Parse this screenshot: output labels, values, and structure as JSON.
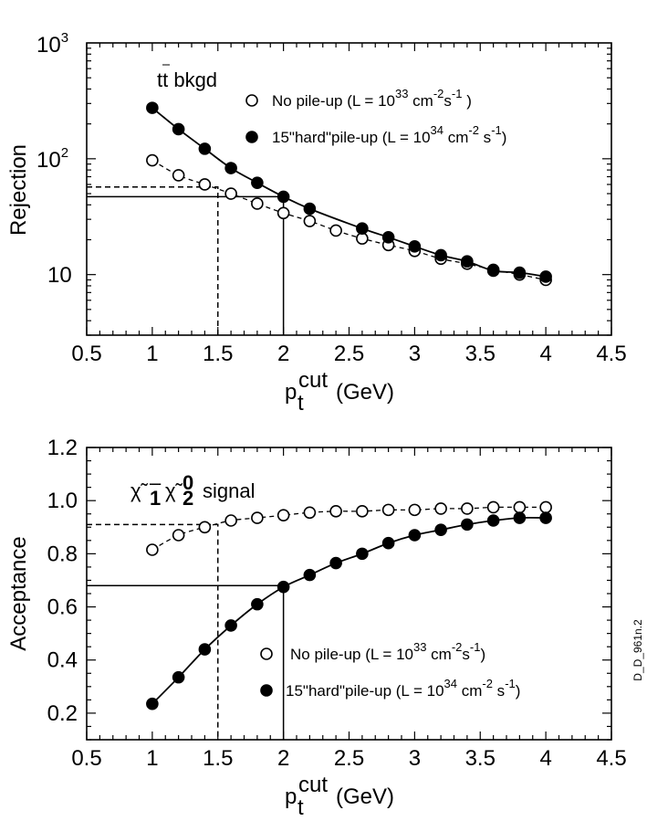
{
  "chart_data": [
    {
      "type": "scatter",
      "id": "top",
      "yscale": "log",
      "xlim": [
        0.5,
        4.5
      ],
      "ylim": [
        3,
        1000
      ],
      "xticks": [
        "0.5",
        "1",
        "1.5",
        "2",
        "2.5",
        "3",
        "3.5",
        "4",
        "4.5"
      ],
      "yticks": [
        {
          "value": 10,
          "label": "10",
          "exp": ""
        },
        {
          "value": 100,
          "label": "10",
          "exp": "2"
        },
        {
          "value": 1000,
          "label": "10",
          "exp": "3"
        }
      ],
      "xlabel": {
        "base": "p",
        "sup": "cut",
        "sub": "t",
        "unit": "(GeV)"
      },
      "ylabel": "Rejection",
      "title": "tt bkgd",
      "legend": [
        {
          "marker": "open",
          "text": "No pile-up (L = 10",
          "exp1": "33",
          "mid": " cm",
          "exp2": "-2",
          "mid2": "s",
          "exp3": "-1",
          "end": " )"
        },
        {
          "marker": "filled",
          "text": "15\"hard\"pile-up (L = 10",
          "exp1": "34",
          "mid": " cm",
          "exp2": "-2",
          "mid2": " s",
          "exp3": "-1",
          "end": ")"
        }
      ],
      "series": [
        {
          "name": "No pile-up",
          "marker": "open",
          "line": "dashed",
          "x": [
            1.0,
            1.2,
            1.4,
            1.6,
            1.8,
            2.0,
            2.2,
            2.4,
            2.6,
            2.8,
            3.0,
            3.2,
            3.4,
            3.6,
            3.8,
            4.0
          ],
          "y": [
            97,
            72,
            60,
            50,
            41,
            34,
            29,
            24,
            20.5,
            18,
            16,
            13.7,
            12.4,
            11,
            10,
            9
          ]
        },
        {
          "name": "15 hard pile-up",
          "marker": "filled",
          "line": "solid",
          "x": [
            1.0,
            1.2,
            1.4,
            1.6,
            1.8,
            2.0,
            2.2,
            2.6,
            2.8,
            3.0,
            3.2,
            3.4,
            3.6,
            3.8,
            4.0
          ],
          "y": [
            275,
            180,
            122,
            83,
            62,
            47,
            37,
            25,
            21,
            17.5,
            14.7,
            13,
            10.8,
            10.4,
            9.6
          ]
        }
      ],
      "guides": [
        {
          "style": "dashed",
          "x": 1.5,
          "y": 57
        },
        {
          "style": "solid",
          "x": 2.0,
          "y": 47
        }
      ]
    },
    {
      "type": "scatter",
      "id": "bottom",
      "yscale": "linear",
      "xlim": [
        0.5,
        4.5
      ],
      "ylim": [
        0.1,
        1.2
      ],
      "xticks": [
        "0.5",
        "1",
        "1.5",
        "2",
        "2.5",
        "3",
        "3.5",
        "4",
        "4.5"
      ],
      "yticks": [
        {
          "value": 0.2,
          "label": "0.2"
        },
        {
          "value": 0.4,
          "label": "0.4"
        },
        {
          "value": 0.6,
          "label": "0.6"
        },
        {
          "value": 0.8,
          "label": "0.8"
        },
        {
          "value": 1.0,
          "label": "1.0"
        },
        {
          "value": 1.2,
          "label": "1.2"
        }
      ],
      "xlabel": {
        "base": "p",
        "sup": "cut",
        "sub": "t",
        "unit": "(GeV)"
      },
      "ylabel": "Acceptance",
      "title": {
        "chi1": "χ̃",
        "sup1": "–",
        "sub1": "1",
        "chi2": "χ̃",
        "sup2": "0",
        "sub2": "2",
        "word": "signal"
      },
      "legend": [
        {
          "marker": "open",
          "text": "No pile-up (L = 10",
          "exp1": "33",
          "mid": " cm",
          "exp2": "-2",
          "mid2": "s",
          "exp3": "-1",
          "end": ")"
        },
        {
          "marker": "filled",
          "text": "15\"hard\"pile-up (L = 10",
          "exp1": "34",
          "mid": " cm",
          "exp2": "-2",
          "mid2": " s",
          "exp3": "-1",
          "end": ")"
        }
      ],
      "series": [
        {
          "name": "No pile-up",
          "marker": "open",
          "line": "dashed",
          "x": [
            1.0,
            1.2,
            1.4,
            1.6,
            1.8,
            2.0,
            2.2,
            2.4,
            2.6,
            2.8,
            3.0,
            3.2,
            3.4,
            3.6,
            3.8,
            4.0
          ],
          "y": [
            0.815,
            0.87,
            0.9,
            0.925,
            0.935,
            0.945,
            0.955,
            0.96,
            0.96,
            0.965,
            0.965,
            0.97,
            0.97,
            0.975,
            0.975,
            0.975
          ]
        },
        {
          "name": "15 hard pile-up",
          "marker": "filled",
          "line": "solid",
          "x": [
            1.0,
            1.2,
            1.4,
            1.6,
            1.8,
            2.0,
            2.2,
            2.4,
            2.6,
            2.8,
            3.0,
            3.2,
            3.4,
            3.6,
            3.8,
            4.0
          ],
          "y": [
            0.235,
            0.335,
            0.44,
            0.53,
            0.61,
            0.675,
            0.72,
            0.765,
            0.8,
            0.84,
            0.87,
            0.89,
            0.91,
            0.925,
            0.935,
            0.935
          ]
        }
      ],
      "guides": [
        {
          "style": "dashed",
          "x": 1.5,
          "y": 0.91
        },
        {
          "style": "solid",
          "x": 2.0,
          "y": 0.68
        }
      ]
    }
  ],
  "side_label": "D_D_961n.2"
}
